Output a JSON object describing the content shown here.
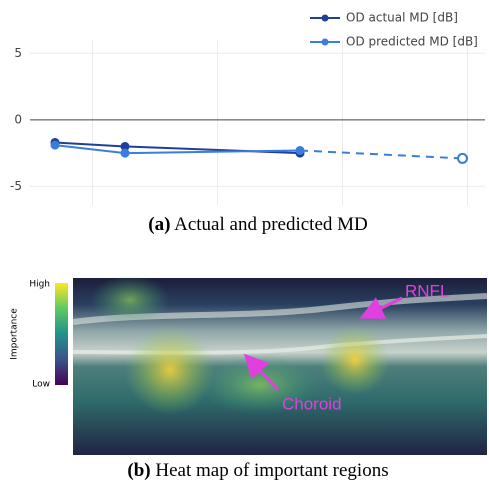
{
  "chart_data": {
    "type": "line",
    "x": [
      -0.3,
      0.26,
      1.66,
      2.96
    ],
    "series": [
      {
        "name": "OD actual MD [dB]",
        "color": "#1f3f99",
        "values": [
          -1.7,
          -2.0,
          -2.5,
          null
        ]
      },
      {
        "name": "OD predicted MD [dB]",
        "color": "#3b7ddd",
        "values": [
          -1.9,
          -2.5,
          -2.3,
          -2.9
        ],
        "dashed_from": 2
      }
    ],
    "xlim": [
      -0.5,
      3.14
    ],
    "xticks": [
      0,
      1,
      2,
      3
    ],
    "ylim": [
      -6.4,
      6
    ],
    "yticks": [
      -5,
      0,
      5
    ],
    "grid": true,
    "legend": "top-right"
  },
  "figure": {
    "caption_a": {
      "label": "(a)",
      "text": "Actual and predicted MD"
    },
    "heatmap": {
      "colorbar_title": "Importance",
      "high": "High",
      "low": "Low",
      "annotations": [
        "RNFL",
        "Choroid"
      ]
    },
    "caption_b": {
      "label": "(b)",
      "text": "Heat map of important regions"
    }
  }
}
